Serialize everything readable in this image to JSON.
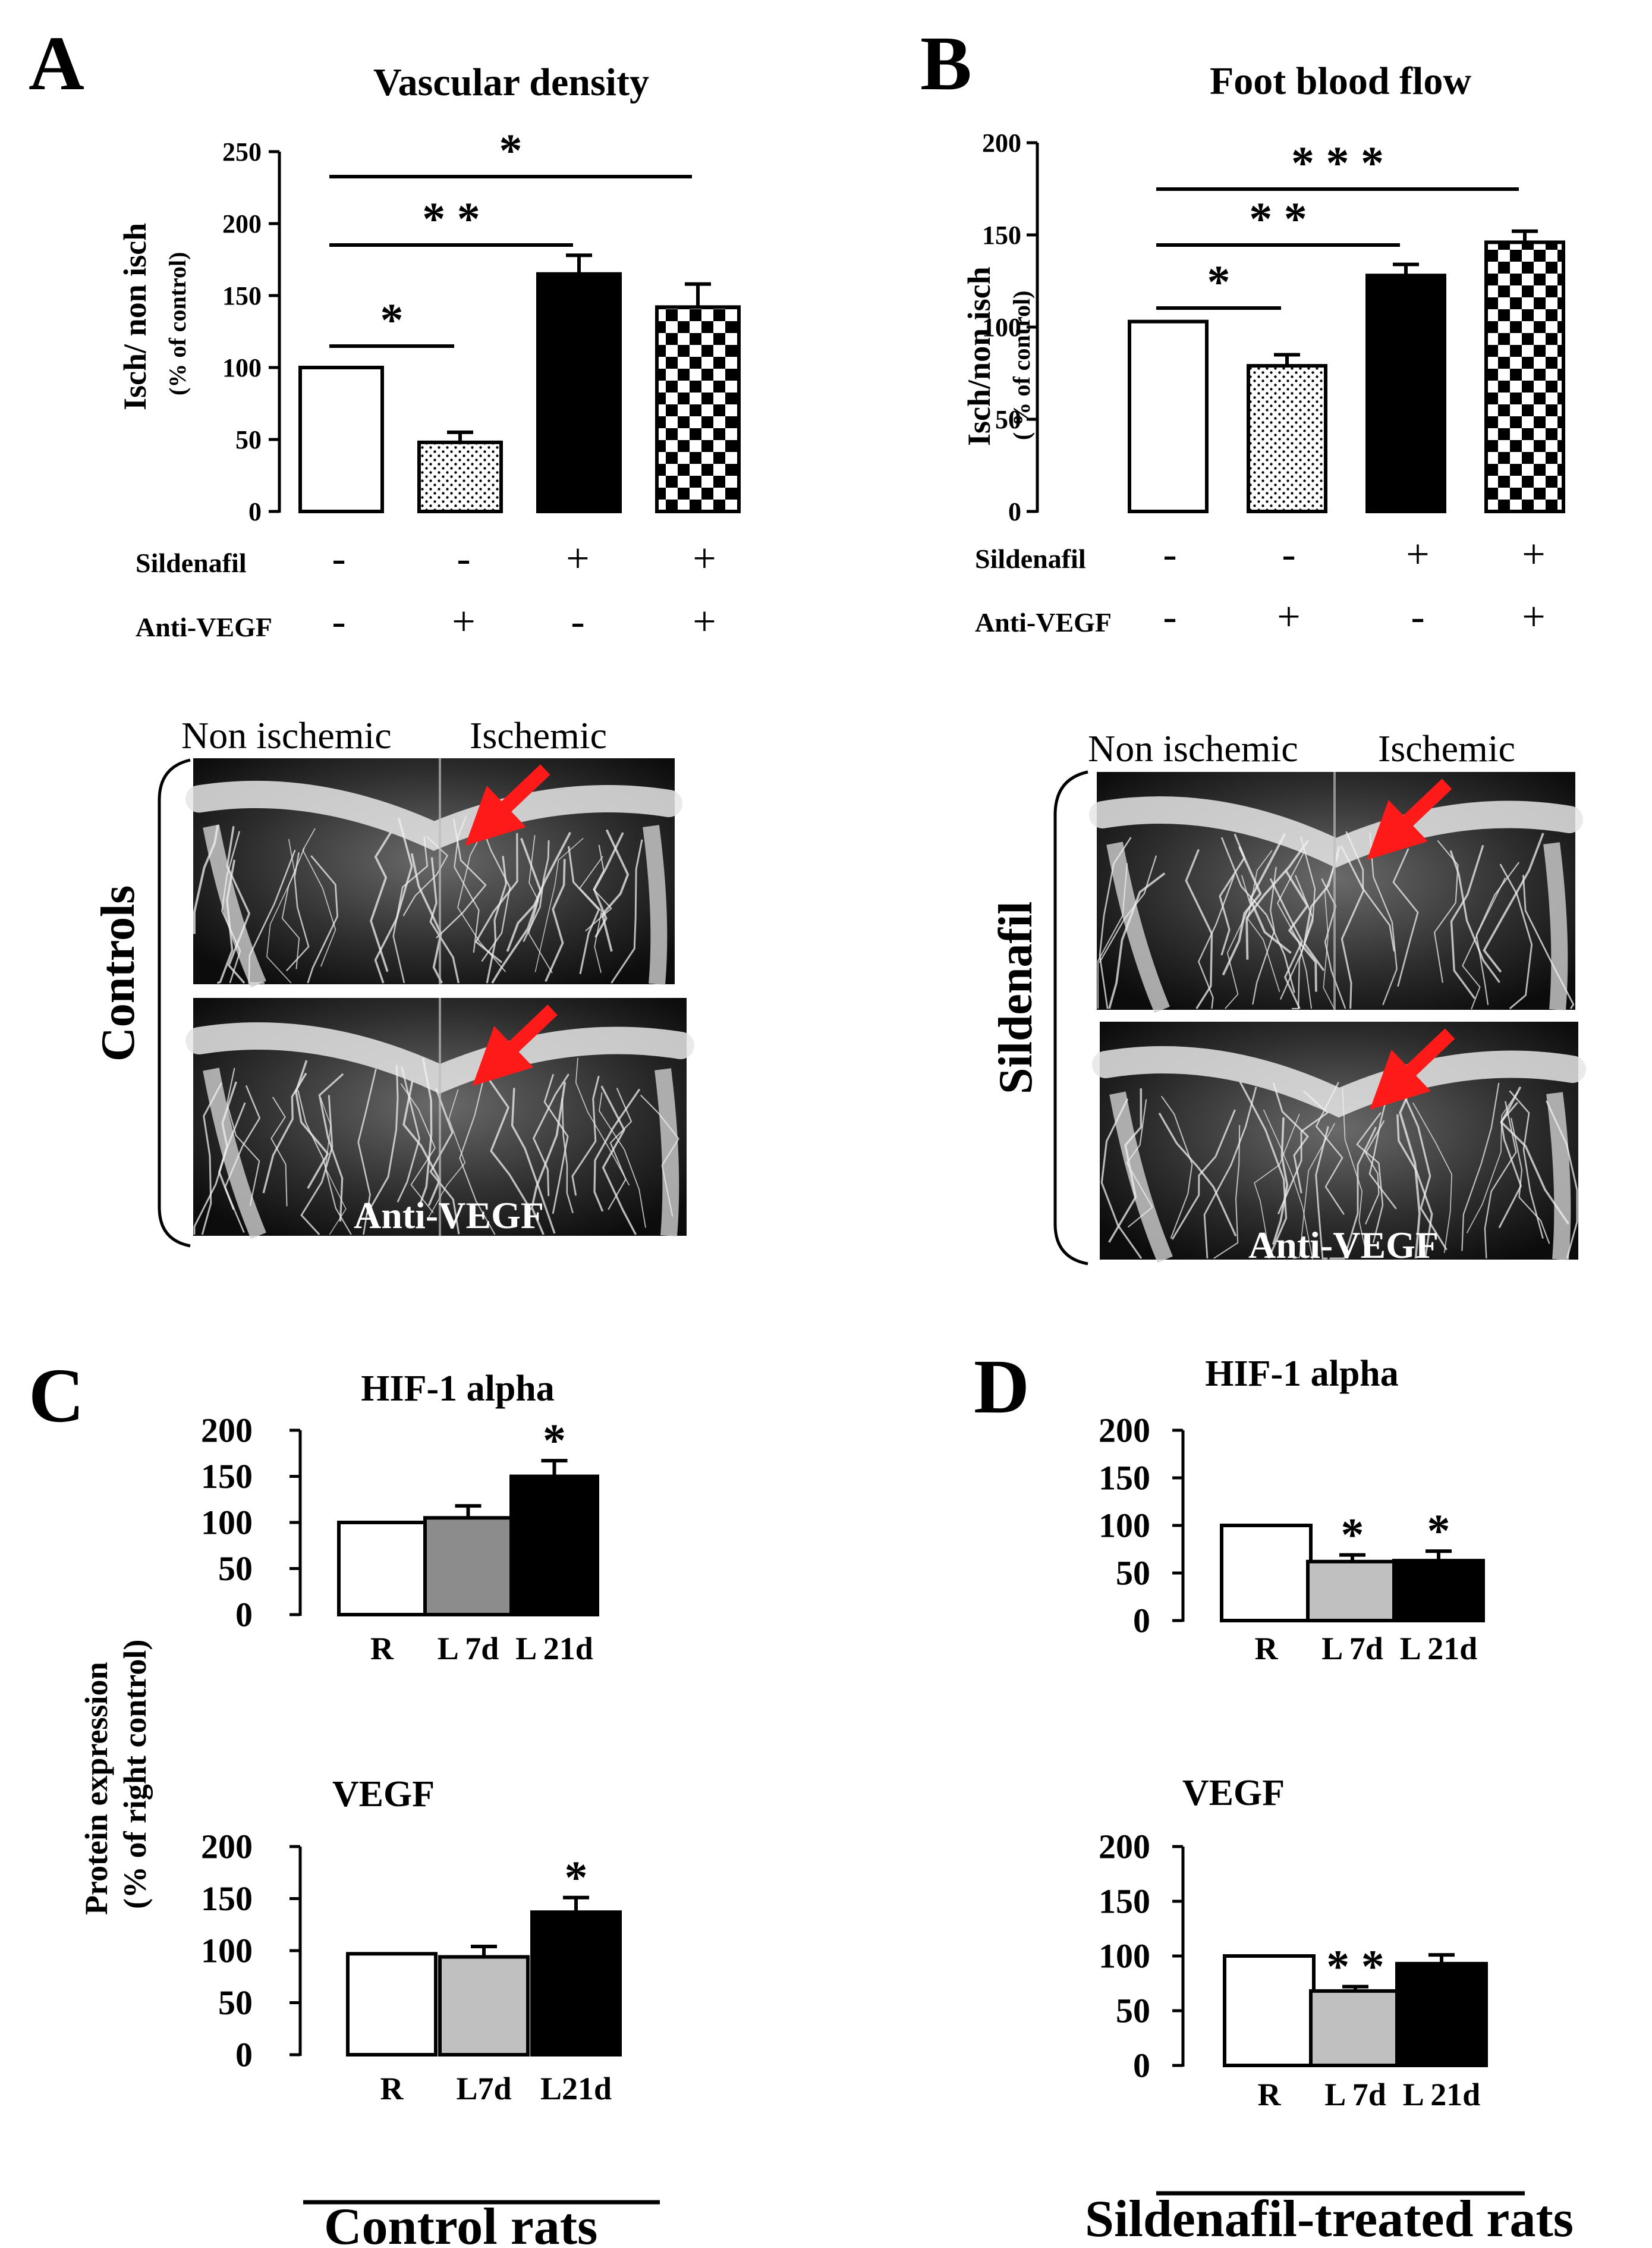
{
  "colors": {
    "accent_arrow": "#ff1a1a",
    "bar_white": "#ffffff",
    "bar_black": "#000000",
    "bar_gray": "#8c8c8c",
    "bar_lightgray": "#c0c0c0"
  },
  "panel_letters": {
    "a": "A",
    "b": "B",
    "c": "C",
    "d": "D"
  },
  "treatment_rows": {
    "sildenafil": "Sildenafil",
    "anti_vegf": "Anti-VEGF",
    "a_sildenafil": [
      "-",
      "-",
      "+",
      "+"
    ],
    "a_antivegf": [
      "-",
      "+",
      "-",
      "+"
    ],
    "b_sildenafil": [
      "-",
      "-",
      "+",
      "+"
    ],
    "b_antivegf": [
      "-",
      "+",
      "-",
      "+"
    ]
  },
  "angiograms": {
    "controls": {
      "group_label": "Controls",
      "non_ischemic": "Non ischemic",
      "ischemic": "Ischemic",
      "bottom_caption": "Anti-VEGF"
    },
    "sildenafil": {
      "group_label": "Sildenafil",
      "non_ischemic": "Non ischemic",
      "ischemic": "Ischemic",
      "bottom_caption": "Anti-VEGF"
    }
  },
  "shared_ylabel_c": [
    "Protein expression",
    "(% of right control)"
  ],
  "group_captions": {
    "c": "Control rats",
    "d": "Sildenafil-treated rats"
  },
  "chart_data": [
    {
      "id": "A",
      "type": "bar",
      "title": "Vascular density",
      "ylabel": [
        "Isch/ non isch",
        "(% of control)"
      ],
      "categories": [
        "Sildenafil - / Anti-VEGF -",
        "Sildenafil - / Anti-VEGF +",
        "Sildenafil + / Anti-VEGF -",
        "Sildenafil + / Anti-VEGF +"
      ],
      "values": [
        100,
        48,
        165,
        142
      ],
      "errors": [
        0,
        7,
        13,
        16
      ],
      "fills": [
        "white",
        "dots",
        "black",
        "checker"
      ],
      "ylim": [
        0,
        250
      ],
      "yticks": [
        "0",
        "50",
        "100",
        "150",
        "200",
        "250"
      ],
      "significance": [
        {
          "from": 0,
          "to": 1,
          "label": "*"
        },
        {
          "from": 0,
          "to": 2,
          "label": "* *"
        },
        {
          "from": 0,
          "to": 3,
          "label": "*"
        }
      ]
    },
    {
      "id": "B",
      "type": "bar",
      "title": "Foot blood flow",
      "ylabel": [
        "Isch/non isch",
        "( % of control)"
      ],
      "categories": [
        "Sildenafil - / Anti-VEGF -",
        "Sildenafil - / Anti-VEGF +",
        "Sildenafil + / Anti-VEGF -",
        "Sildenafil + / Anti-VEGF +"
      ],
      "values": [
        103,
        79,
        128,
        146
      ],
      "errors": [
        0,
        6,
        6,
        6
      ],
      "fills": [
        "white",
        "dots",
        "black",
        "checker"
      ],
      "ylim": [
        0,
        200
      ],
      "yticks": [
        "0",
        "50",
        "100",
        "150",
        "200"
      ],
      "significance": [
        {
          "from": 0,
          "to": 1,
          "label": "*"
        },
        {
          "from": 0,
          "to": 2,
          "label": "* *"
        },
        {
          "from": 0,
          "to": 3,
          "label": "* * *"
        }
      ]
    },
    {
      "id": "C1",
      "type": "bar",
      "title": "HIF-1 alpha",
      "categories": [
        "R",
        "L 7d",
        "L 21d"
      ],
      "values": [
        100,
        105,
        150
      ],
      "errors": [
        0,
        13,
        17
      ],
      "fills": [
        "white",
        "gray",
        "black"
      ],
      "ylim": [
        0,
        200
      ],
      "yticks": [
        "0",
        "50",
        "100",
        "150",
        "200"
      ],
      "stars": [
        "",
        "",
        "*"
      ]
    },
    {
      "id": "C2",
      "type": "bar",
      "title": "VEGF",
      "categories": [
        "R",
        "L7d",
        "L21d"
      ],
      "values": [
        97,
        94,
        137
      ],
      "errors": [
        0,
        10,
        14
      ],
      "fills": [
        "white",
        "lightgray",
        "black"
      ],
      "ylim": [
        0,
        200
      ],
      "yticks": [
        "0",
        "50",
        "100",
        "150",
        "200"
      ],
      "stars": [
        "",
        "",
        "*"
      ]
    },
    {
      "id": "D1",
      "type": "bar",
      "title": "HIF-1 alpha",
      "categories": [
        "R",
        "L 7d",
        "L 21d"
      ],
      "values": [
        100,
        62,
        63
      ],
      "errors": [
        0,
        7,
        10
      ],
      "fills": [
        "white",
        "lightgray",
        "black"
      ],
      "ylim": [
        0,
        200
      ],
      "yticks": [
        "0",
        "50",
        "100",
        "150",
        "200"
      ],
      "stars": [
        "",
        "*",
        "*"
      ]
    },
    {
      "id": "D2",
      "type": "bar",
      "title": "VEGF",
      "categories": [
        "R",
        "L 7d",
        "L 21d"
      ],
      "values": [
        100,
        68,
        93
      ],
      "errors": [
        0,
        4,
        8
      ],
      "fills": [
        "white",
        "lightgray",
        "black"
      ],
      "ylim": [
        0,
        200
      ],
      "yticks": [
        "0",
        "50",
        "100",
        "150",
        "200"
      ],
      "stars": [
        "",
        "* *",
        ""
      ]
    }
  ]
}
